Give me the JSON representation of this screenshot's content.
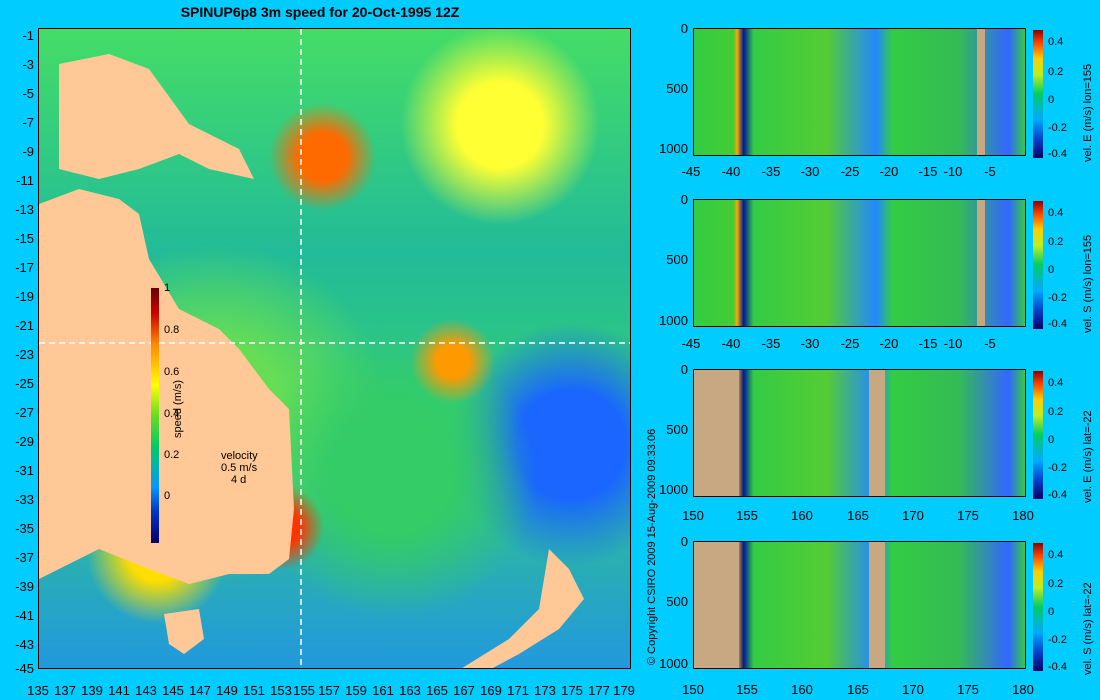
{
  "title": "SPINUP6p8 3m speed for 20-Oct-1995 12Z",
  "map": {
    "lat_labels": [
      "-1",
      "-3",
      "-5",
      "-7",
      "-9",
      "-11",
      "-13",
      "-15",
      "-17",
      "-19",
      "-21",
      "-23",
      "-25",
      "-27",
      "-29",
      "-31",
      "-33",
      "-35",
      "-37",
      "-39",
      "-41",
      "-43",
      "-45"
    ],
    "lon_labels": [
      "135",
      "137",
      "139",
      "141",
      "143",
      "145",
      "147",
      "149",
      "151",
      "153",
      "155",
      "157",
      "159",
      "161",
      "163",
      "165",
      "167",
      "169",
      "171",
      "173",
      "175",
      "177",
      "179"
    ],
    "colorbar": {
      "label": "speed (m/s)",
      "ticks": [
        "1",
        "0.8",
        "0.6",
        "0.4",
        "0.2",
        "0"
      ]
    },
    "velocity_key": {
      "title": "velocity",
      "speed": "0.5 m/s",
      "time": "4 d"
    }
  },
  "copyright": "© Copyright CSIRO 2009   15-Aug-2009 09:33:06",
  "panels": [
    {
      "label": "vel. E (m/s) lon=155",
      "x_ticks": [
        "-45",
        "-40",
        "-35",
        "-30",
        "-25",
        "-20",
        "-15",
        "-10",
        "-5"
      ]
    },
    {
      "label": "vel. S (m/s) lon=155",
      "x_ticks": [
        "-45",
        "-40",
        "-35",
        "-30",
        "-25",
        "-20",
        "-15",
        "-10",
        "-5"
      ]
    },
    {
      "label": "vel. E (m/s) lat=-22",
      "x_ticks": [
        "150",
        "155",
        "160",
        "165",
        "170",
        "175",
        "180"
      ]
    },
    {
      "label": "vel. S (m/s) lat=-22",
      "x_ticks": [
        "150",
        "155",
        "160",
        "165",
        "170",
        "175",
        "180"
      ]
    }
  ],
  "panel_y_ticks": [
    "0",
    "500",
    "1000"
  ],
  "panel_colorbar_ticks": [
    "0.4",
    "0.2",
    "0",
    "-0.2",
    "-0.4"
  ],
  "colors": {
    "background": "#00ccff",
    "land": "#ffc896",
    "section_land": "#c8a882"
  }
}
